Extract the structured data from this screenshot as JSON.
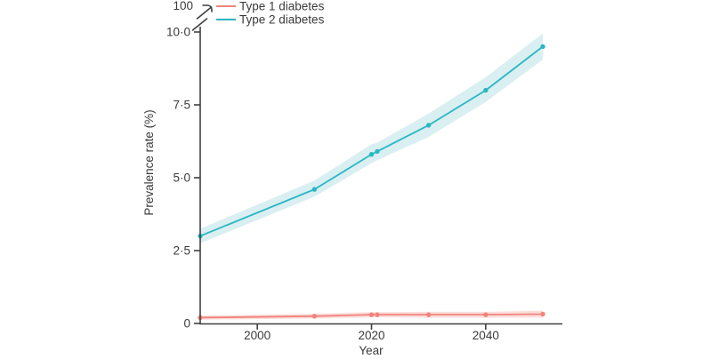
{
  "figure": {
    "background": "#ffffff",
    "text_color": "#3b3b3b",
    "axis_color": "#3f3f3f"
  },
  "legend": {
    "position": "top-left",
    "items": [
      {
        "label": "Type 1 diabetes",
        "color": "#f0837c"
      },
      {
        "label": "Type 2 diabetes",
        "color": "#2ab7c3"
      }
    ]
  },
  "chart_data": {
    "type": "line",
    "title": "",
    "xlabel": "Year",
    "ylabel": "Prevalence rate (%)",
    "grid": false,
    "markers": true,
    "confidence_bands": true,
    "xlim": [
      1990,
      2053
    ],
    "ylim": [
      0,
      10.3
    ],
    "y_axis_break": {
      "present": true,
      "top_label": "100"
    },
    "x": [
      1990,
      2010,
      2020,
      2021,
      2030,
      2040,
      2050
    ],
    "x_ticks": [
      {
        "value": 2000,
        "label": "2000"
      },
      {
        "value": 2020,
        "label": "2020"
      },
      {
        "value": 2040,
        "label": "2040"
      }
    ],
    "y_ticks": [
      {
        "value": 0,
        "label": "0"
      },
      {
        "value": 2.5,
        "label": "2·5"
      },
      {
        "value": 5,
        "label": "5·0"
      },
      {
        "value": 7.5,
        "label": "7·5"
      },
      {
        "value": 10,
        "label": "10·0"
      }
    ],
    "series": [
      {
        "name": "Type 1 diabetes",
        "color": "#f0837c",
        "band_color": "#fbdedb",
        "values": [
          0.2,
          0.25,
          0.3,
          0.3,
          0.3,
          0.3,
          0.32
        ],
        "band_low": [
          0.13,
          0.17,
          0.21,
          0.21,
          0.2,
          0.2,
          0.2
        ],
        "band_high": [
          0.27,
          0.33,
          0.39,
          0.39,
          0.4,
          0.4,
          0.44
        ]
      },
      {
        "name": "Type 2 diabetes",
        "color": "#2ab7c3",
        "band_color": "#daeff2",
        "values": [
          3.0,
          4.6,
          5.8,
          5.9,
          6.8,
          8.0,
          9.5
        ],
        "band_low": [
          2.75,
          4.35,
          5.5,
          5.6,
          6.4,
          7.6,
          9.05
        ],
        "band_high": [
          3.25,
          4.9,
          6.15,
          6.2,
          7.2,
          8.45,
          9.95
        ]
      }
    ]
  }
}
